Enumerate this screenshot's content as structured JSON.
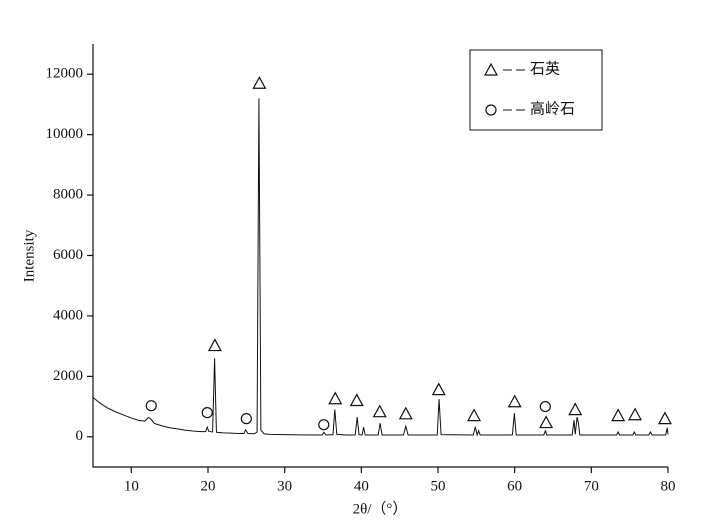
{
  "chart_data": {
    "type": "line",
    "x_label": "2θ/（°）",
    "y_label": "Intensity",
    "xlim": [
      5,
      80
    ],
    "xticks": [
      10,
      20,
      30,
      40,
      50,
      60,
      70,
      80
    ],
    "ylim": [
      -1000,
      13000
    ],
    "yticks": [
      0,
      2000,
      4000,
      6000,
      8000,
      10000,
      12000
    ],
    "color": "#111111",
    "x": [
      5,
      6,
      7,
      8,
      9,
      10,
      11,
      11.8,
      12.2,
      12.5,
      13,
      14,
      15,
      16,
      17,
      18,
      19,
      19.7,
      19.9,
      20.1,
      20.6,
      20.86,
      21.1,
      22,
      23,
      24,
      24.7,
      24.9,
      25.2,
      26,
      26.4,
      26.64,
      26.9,
      27.3,
      28,
      30,
      32,
      34,
      34.9,
      35.1,
      35.4,
      36.3,
      36.54,
      36.8,
      38,
      39.2,
      39.46,
      39.7,
      40.1,
      40.3,
      40.5,
      42.2,
      42.45,
      42.7,
      45.5,
      45.8,
      46.1,
      49.9,
      50.14,
      50.4,
      54.6,
      54.87,
      55.1,
      55.3,
      55.5,
      59.7,
      59.96,
      60.2,
      63.8,
      64.0,
      64.2,
      67.5,
      67.74,
      67.9,
      68.14,
      68.3,
      68.5,
      73.3,
      73.5,
      73.7,
      75.4,
      75.6,
      75.8,
      77.5,
      77.7,
      77.9,
      79.7,
      79.9,
      80
    ],
    "values": [
      1300,
      1100,
      940,
      820,
      720,
      620,
      540,
      520,
      640,
      600,
      440,
      360,
      300,
      260,
      220,
      190,
      170,
      170,
      320,
      180,
      160,
      2600,
      150,
      130,
      120,
      110,
      110,
      230,
      110,
      100,
      150,
      11200,
      220,
      100,
      80,
      70,
      65,
      60,
      60,
      150,
      60,
      70,
      900,
      80,
      60,
      60,
      650,
      70,
      60,
      320,
      60,
      60,
      450,
      60,
      60,
      350,
      60,
      60,
      1250,
      70,
      60,
      330,
      60,
      200,
      60,
      60,
      780,
      60,
      60,
      200,
      60,
      60,
      550,
      80,
      650,
      480,
      60,
      60,
      160,
      60,
      60,
      160,
      60,
      60,
      160,
      60,
      60,
      300,
      80
    ],
    "series": [
      {
        "name": "石英",
        "marker": "triangle",
        "x": [
          20.9,
          26.7,
          36.6,
          39.4,
          42.4,
          45.8,
          50.1,
          54.7,
          60.0,
          64.1,
          67.9,
          73.5,
          75.7,
          79.6
        ],
        "values": [
          3020,
          11700,
          1260,
          1200,
          830,
          760,
          1560,
          700,
          1160,
          470,
          900,
          700,
          730,
          600
        ]
      },
      {
        "name": "高岭石",
        "marker": "circle",
        "x": [
          12.6,
          19.9,
          25.0,
          35.1,
          64.0
        ],
        "values": [
          1030,
          800,
          600,
          400,
          1000
        ]
      }
    ]
  }
}
